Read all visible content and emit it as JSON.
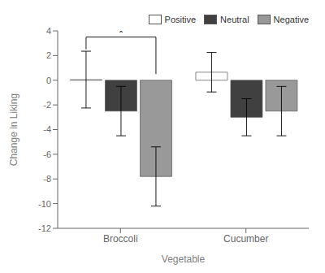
{
  "chart_data": {
    "type": "bar",
    "xlabel": "Vegetable",
    "ylabel": "Change in Liking",
    "categories": [
      "Broccoli",
      "Cucumber"
    ],
    "series": [
      {
        "name": "Positive",
        "color": "#ffffff",
        "values": [
          0.05,
          0.65
        ],
        "errors": [
          2.3,
          1.6
        ]
      },
      {
        "name": "Neutral",
        "color": "#404040",
        "values": [
          -2.5,
          -3.0
        ],
        "errors": [
          2.0,
          1.5
        ]
      },
      {
        "name": "Negative",
        "color": "#999999",
        "values": [
          -7.8,
          -2.5
        ],
        "errors": [
          2.4,
          2.0
        ]
      }
    ],
    "ylim": [
      -12,
      4
    ],
    "yticks": [
      -12,
      -10,
      -8,
      -6,
      -4,
      -2,
      0,
      2,
      4
    ],
    "grid": false,
    "legend": "upper right",
    "annotations": [
      {
        "text": "*",
        "category": "Broccoli",
        "series": [
          "Positive",
          "Negative"
        ],
        "y": 3.5,
        "y_ends": [
          2.5,
          0.5
        ]
      }
    ]
  }
}
